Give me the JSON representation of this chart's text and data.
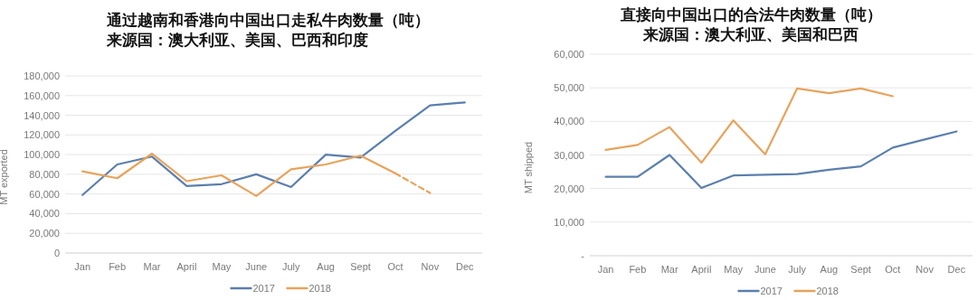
{
  "chart_data": [
    {
      "type": "line",
      "title": "通过越南和香港向中国出口走私牛肉数量（吨）",
      "subtitle": "来源国：澳大利亚、美国、巴西和印度",
      "ylabel": "MT exported",
      "categories": [
        "Jan",
        "Feb",
        "Mar",
        "April",
        "May",
        "June",
        "July",
        "Aug",
        "Sept",
        "Oct",
        "Nov",
        "Dec"
      ],
      "series": [
        {
          "name": "2017",
          "color": "#5b7fad",
          "values": [
            59000,
            90000,
            98000,
            68000,
            70000,
            80000,
            67000,
            100000,
            97000,
            124000,
            150000,
            153000
          ]
        },
        {
          "name": "2018",
          "color": "#e7a35c",
          "values": [
            83000,
            76000,
            101000,
            73000,
            79000,
            58000,
            85000,
            90000,
            99000,
            81000,
            null,
            null
          ]
        },
        {
          "color": "#e7a35c",
          "line_style": "dashed",
          "values": [
            null,
            null,
            null,
            null,
            null,
            null,
            null,
            null,
            null,
            81000,
            61000,
            null
          ]
        }
      ],
      "ylim": [
        0,
        180000
      ],
      "yticks": [
        {
          "value": 0,
          "label": "0"
        },
        {
          "value": 20000,
          "label": "20,000"
        },
        {
          "value": 40000,
          "label": "40,000"
        },
        {
          "value": 60000,
          "label": "60,000"
        },
        {
          "value": 80000,
          "label": "80,000"
        },
        {
          "value": 100000,
          "label": "100,000"
        },
        {
          "value": 120000,
          "label": "120,000"
        },
        {
          "value": 140000,
          "label": "140,000"
        },
        {
          "value": 160000,
          "label": "160,000"
        },
        {
          "value": 180000,
          "label": "180,000"
        }
      ],
      "grid": "y",
      "legend": "bottom",
      "line_style": "solid",
      "marker": "none"
    },
    {
      "type": "line",
      "title": "直接向中国出口的合法牛肉数量（吨）",
      "subtitle": "来源国：澳大利亚、美国和巴西",
      "ylabel": "MT shipped",
      "categories": [
        "Jan",
        "Feb",
        "Mar",
        "April",
        "May",
        "June",
        "July",
        "Aug",
        "Sept",
        "Oct",
        "Nov",
        "Dec"
      ],
      "series": [
        {
          "name": "2017",
          "color": "#5b7fad",
          "values": [
            23500,
            23500,
            30000,
            20200,
            23900,
            24100,
            24300,
            25600,
            26600,
            32200,
            34600,
            37000
          ]
        },
        {
          "name": "2018",
          "color": "#e7a35c",
          "values": [
            31500,
            33000,
            38300,
            27700,
            40300,
            30200,
            49800,
            48400,
            49800,
            47500,
            null,
            null
          ]
        }
      ],
      "ylim": [
        0,
        60000
      ],
      "yticks": [
        {
          "value": 0,
          "label": "-"
        },
        {
          "value": 10000,
          "label": "10,000"
        },
        {
          "value": 20000,
          "label": "20,000"
        },
        {
          "value": 30000,
          "label": "30,000"
        },
        {
          "value": 40000,
          "label": "40,000"
        },
        {
          "value": 50000,
          "label": "50,000"
        },
        {
          "value": 60000,
          "label": "60,000"
        }
      ],
      "grid": "y",
      "legend": "bottom",
      "line_style": "solid",
      "marker": "none"
    }
  ]
}
